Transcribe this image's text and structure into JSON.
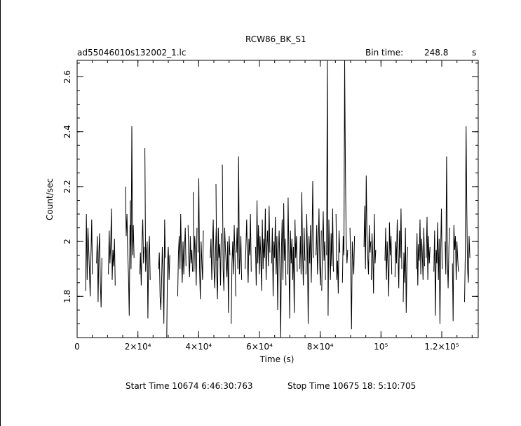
{
  "header": {
    "title": "RCW86_BK_S1",
    "filename": "ad55046010s132002_1.lc",
    "bin_time_label": "Bin time:",
    "bin_time_value": "248.8",
    "bin_time_unit": "s"
  },
  "footer": {
    "start_label": "Start Time 10674  6:46:30:763",
    "stop_label": "Stop Time 10675 18: 5:10:705"
  },
  "chart_data": {
    "type": "line",
    "title": "RCW86_BK_S1",
    "xlabel": "Time (s)",
    "ylabel": "Count/sec",
    "xlim": [
      0,
      132000
    ],
    "ylim": [
      1.65,
      2.66
    ],
    "x_ticks": [
      {
        "value": 0,
        "label": "0"
      },
      {
        "value": 20000,
        "label": "2×10⁴"
      },
      {
        "value": 40000,
        "label": "4×10⁴"
      },
      {
        "value": 60000,
        "label": "6×10⁴"
      },
      {
        "value": 80000,
        "label": "8×10⁴"
      },
      {
        "value": 100000,
        "label": "10⁵"
      },
      {
        "value": 120000,
        "label": "1.2×10⁵"
      }
    ],
    "y_ticks": [
      {
        "value": 1.8,
        "label": "1.8"
      },
      {
        "value": 2.0,
        "label": "2"
      },
      {
        "value": 2.2,
        "label": "2.2"
      },
      {
        "value": 2.4,
        "label": "2.4"
      },
      {
        "value": 2.6,
        "label": "2.6"
      }
    ],
    "grid": false,
    "segments": [
      {
        "start": 2800,
        "values": [
          1.82,
          2.1,
          1.86,
          2.05,
          1.98,
          1.9,
          1.8,
          1.95,
          2.08,
          1.88
        ]
      },
      {
        "start": 6400,
        "values": [
          1.92,
          2.02,
          1.78,
          1.96,
          2.03,
          1.85,
          1.76,
          1.94
        ]
      },
      {
        "start": 10300,
        "values": [
          1.88,
          2.04,
          1.92,
          1.99,
          2.12,
          1.86,
          1.97,
          1.91,
          2.01,
          1.84
        ]
      },
      {
        "start": 15900,
        "values": [
          2.2,
          2.02,
          2.1,
          1.96,
          1.88,
          1.73,
          2.06,
          1.98
        ]
      },
      {
        "start": 17500,
        "values": [
          2.15,
          1.9,
          2.42,
          1.95,
          2.06,
          1.94
        ]
      },
      {
        "start": 20600,
        "values": [
          1.88,
          1.96,
          1.84,
          2.0,
          2.08,
          1.92,
          1.98
        ]
      },
      {
        "start": 22300,
        "values": [
          2.34,
          1.89,
          1.96,
          2.0,
          1.72,
          1.95,
          2.02,
          1.86
        ]
      },
      {
        "start": 26800,
        "values": [
          1.9,
          1.96,
          1.8,
          1.75,
          1.85,
          1.98,
          1.88,
          1.7,
          2.08,
          1.94
        ]
      },
      {
        "start": 29500,
        "values": [
          1.65,
          1.92,
          1.98,
          1.86,
          1.95
        ]
      },
      {
        "start": 33100,
        "values": [
          1.8,
          1.96,
          2.02,
          1.9,
          2.1,
          1.94,
          1.85,
          2.0,
          1.88,
          1.97,
          2.05,
          1.91
        ]
      },
      {
        "start": 36500,
        "values": [
          2.06,
          1.94,
          1.87,
          2.02,
          1.92,
          1.97,
          1.89
        ]
      },
      {
        "start": 38200,
        "values": [
          2.18,
          1.89,
          2.02,
          1.96,
          1.84,
          2.05
        ]
      },
      {
        "start": 39800,
        "values": [
          1.96,
          2.23,
          1.9,
          1.79,
          2.0,
          1.92,
          1.86,
          2.04
        ]
      },
      {
        "start": 43800,
        "values": [
          1.94,
          2.01,
          1.86,
          1.98,
          2.08,
          1.9,
          1.83,
          1.97,
          2.05,
          1.93
        ]
      },
      {
        "start": 45700,
        "values": [
          2.21,
          1.88,
          1.79,
          2.05,
          1.94,
          1.99,
          1.84,
          2.03
        ]
      },
      {
        "start": 47800,
        "values": [
          2.28,
          1.9,
          1.82,
          2.05,
          1.98,
          1.92,
          1.87,
          2.0,
          1.74,
          2.02,
          1.95
        ]
      },
      {
        "start": 50700,
        "values": [
          1.7,
          1.92,
          2.0,
          1.88,
          2.06,
          1.95,
          1.8
        ]
      },
      {
        "start": 52400,
        "values": [
          1.96,
          2.05,
          1.9,
          2.31,
          1.88,
          1.94,
          2.02,
          1.86
        ]
      },
      {
        "start": 55300,
        "values": [
          1.9,
          1.98,
          2.08,
          1.93,
          1.85,
          2.01,
          1.95,
          2.1,
          1.89
        ]
      },
      {
        "start": 58700,
        "values": [
          1.98,
          1.84,
          2.15,
          1.92,
          2.06,
          1.88,
          2.02,
          1.95,
          1.82,
          2.08,
          1.9,
          2.01,
          1.94,
          2.12,
          1.86,
          1.99,
          2.04,
          1.91,
          2.13,
          1.96
        ]
      },
      {
        "start": 64000,
        "values": [
          1.92,
          2.05,
          1.8,
          2.0,
          1.94,
          2.09,
          1.88,
          2.02,
          1.75,
          1.96,
          2.04,
          1.9,
          1.65,
          1.98,
          2.08,
          1.86,
          2.14,
          1.93,
          2.01,
          1.84
        ]
      },
      {
        "start": 69200,
        "values": [
          1.88,
          2.16,
          1.95,
          1.72,
          2.04,
          1.92,
          2.01,
          1.86,
          1.98,
          1.74,
          2.08,
          1.94,
          2.02,
          1.89
        ]
      },
      {
        "start": 73200,
        "values": [
          1.9,
          2.02,
          1.88,
          2.18,
          1.96,
          1.84,
          2.05,
          1.93
        ]
      },
      {
        "start": 75300,
        "values": [
          1.88,
          2.1,
          1.96,
          1.7,
          2.02,
          1.92,
          2.06,
          1.85,
          1.99,
          2.22,
          1.94
        ]
      },
      {
        "start": 78600,
        "values": [
          1.95,
          2.06,
          1.88,
          1.98,
          2.12,
          1.91,
          1.84,
          2.04
        ]
      },
      {
        "start": 80500,
        "values": [
          1.82,
          1.98,
          2.11,
          1.93,
          2.0,
          1.86
        ]
      },
      {
        "start": 82100,
        "values": [
          1.95,
          2.66,
          1.73,
          2.08,
          1.96,
          1.86,
          2.03,
          1.91,
          2.12,
          1.89
        ]
      },
      {
        "start": 85200,
        "values": [
          2.1,
          1.86,
          1.93,
          1.81,
          2.04,
          1.96
        ]
      },
      {
        "start": 87300,
        "values": [
          1.85,
          2.02,
          1.95,
          2.66,
          2.26,
          2.01,
          1.92,
          1.97
        ]
      },
      {
        "start": 89800,
        "values": [
          2.05,
          1.9,
          1.68,
          2.0,
          1.94,
          1.88,
          2.02
        ]
      },
      {
        "start": 94400,
        "values": [
          1.98,
          2.13,
          1.9,
          2.24,
          2.02,
          1.94,
          1.88,
          2.06,
          1.96,
          2.0
        ]
      },
      {
        "start": 96800,
        "values": [
          1.86,
          2.03,
          1.95,
          1.81,
          2.1,
          1.92,
          1.97
        ]
      },
      {
        "start": 101300,
        "values": [
          1.93,
          2.05,
          1.86,
          2.0,
          1.91,
          1.8,
          2.07,
          1.95,
          2.02,
          1.88
        ]
      },
      {
        "start": 104600,
        "values": [
          1.87,
          2.0,
          1.92,
          2.08,
          1.96,
          1.83,
          2.04,
          1.94,
          2.12,
          1.9
        ]
      },
      {
        "start": 107300,
        "values": [
          1.78,
          1.96,
          1.85,
          2.05,
          1.74,
          1.92,
          1.98
        ]
      },
      {
        "start": 111600,
        "values": [
          1.9,
          2.03,
          1.84,
          1.99,
          1.93,
          2.08,
          1.88,
          2.01,
          1.96,
          1.86,
          2.05,
          1.91
        ]
      },
      {
        "start": 114900,
        "values": [
          1.94,
          2.09,
          1.86,
          2.02,
          1.92,
          1.98
        ]
      },
      {
        "start": 117400,
        "values": [
          1.89,
          2.04,
          1.73,
          1.97,
          1.92,
          2.07,
          1.86,
          2.01,
          1.7,
          1.96,
          2.12,
          1.9
        ]
      },
      {
        "start": 121100,
        "values": [
          2.0,
          1.88,
          2.31,
          1.94,
          1.83,
          1.98,
          2.05
        ]
      },
      {
        "start": 123500,
        "values": [
          1.92,
          1.71,
          2.06,
          1.97,
          2.02,
          1.86,
          2.0,
          1.94,
          1.89
        ]
      },
      {
        "start": 127500,
        "values": [
          1.78,
          1.96,
          2.42,
          2.12,
          1.9,
          1.85,
          2.02,
          1.94
        ]
      }
    ]
  }
}
